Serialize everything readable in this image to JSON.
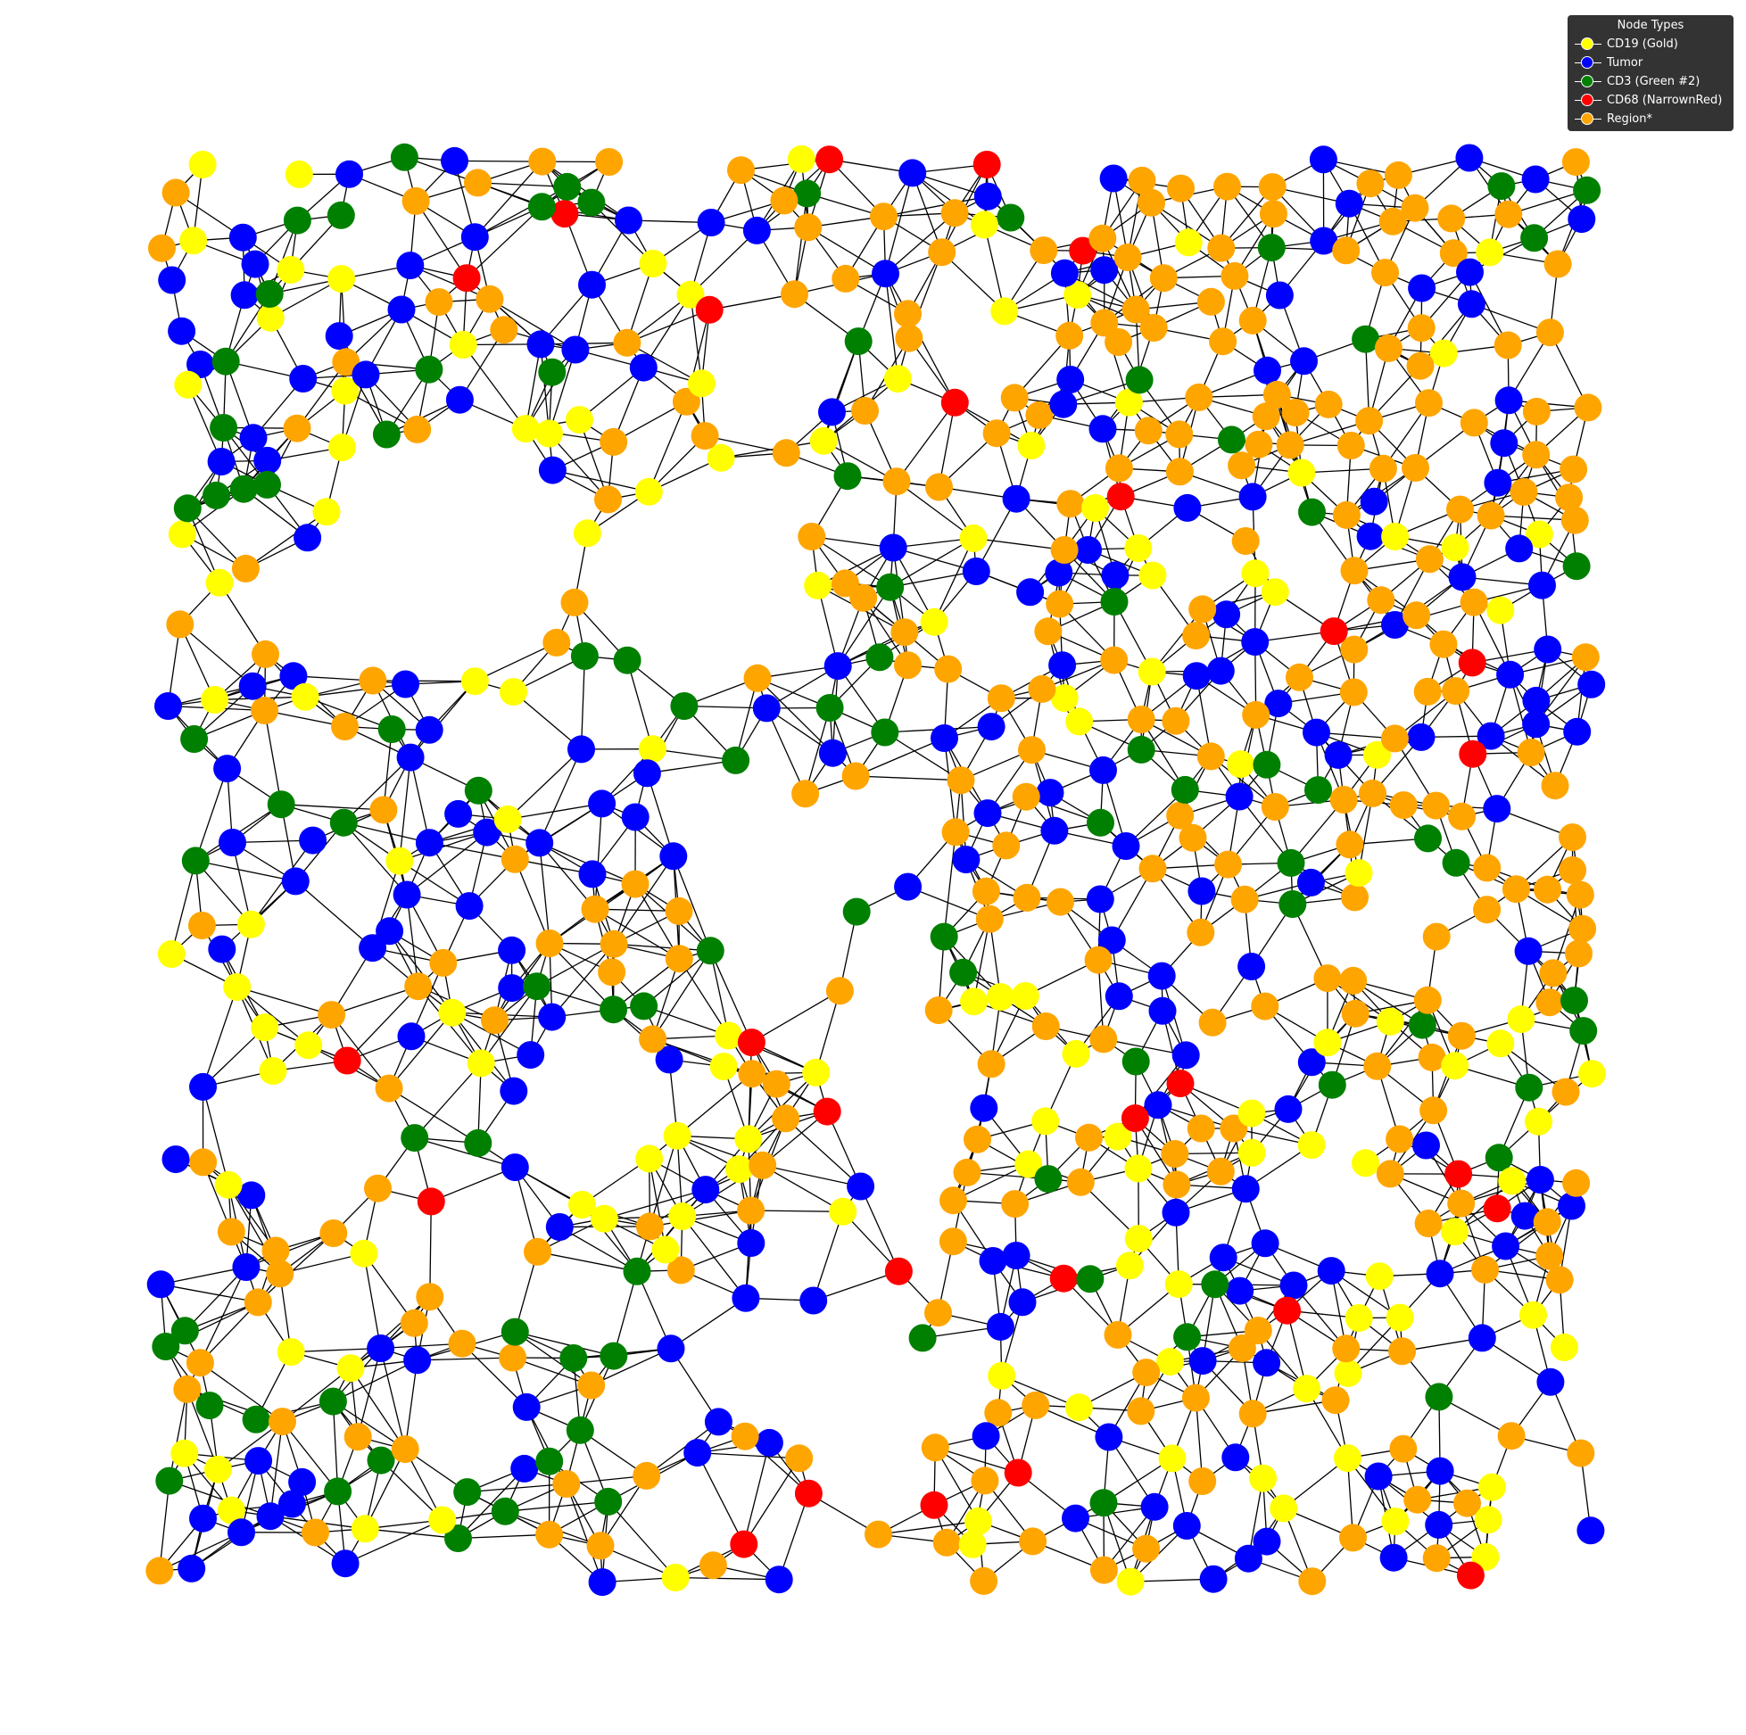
{
  "legend": {
    "title": "Node Types",
    "items": [
      {
        "label": "CD19 (Gold)",
        "color": "#ffff00"
      },
      {
        "label": "Tumor",
        "color": "#0000ff"
      },
      {
        "label": "CD3 (Green #2)",
        "color": "#008000"
      },
      {
        "label": "CD68 (NarrownRed)",
        "color": "#ff0000"
      },
      {
        "label": "Region*",
        "color": "#ffa500"
      }
    ]
  },
  "graph": {
    "type": "network",
    "edge_color": "#000000",
    "node_types": [
      "CD19 (Gold)",
      "Tumor",
      "CD3 (Green #2)",
      "CD68 (NarrownRed)",
      "Region*"
    ]
  }
}
